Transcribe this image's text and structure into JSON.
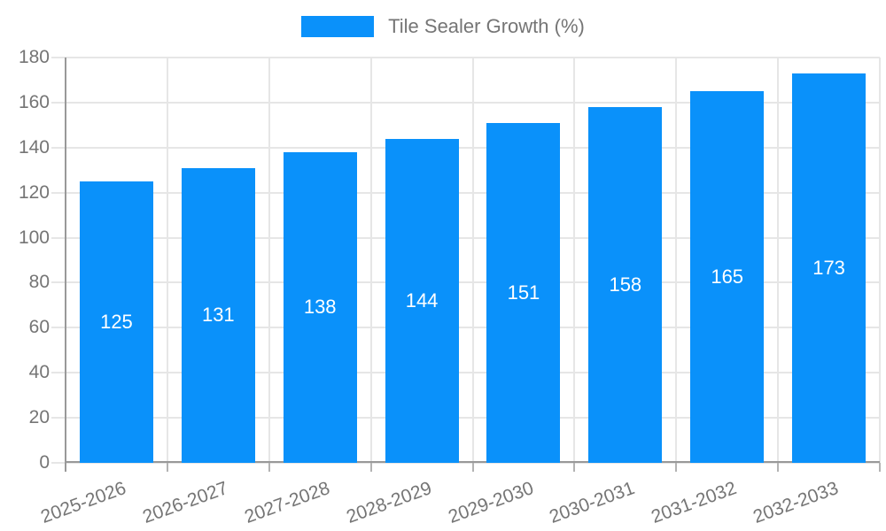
{
  "legend": {
    "label": "Tile Sealer Growth (%)"
  },
  "chart_data": {
    "type": "bar",
    "title": "Tile Sealer Growth (%)",
    "categories": [
      "2025-2026",
      "2026-2027",
      "2027-2028",
      "2028-2029",
      "2029-2030",
      "2030-2031",
      "2031-2032",
      "2032-2033"
    ],
    "series": [
      {
        "name": "Tile Sealer Growth (%)",
        "values": [
          125,
          131,
          138,
          144,
          151,
          158,
          165,
          173
        ]
      }
    ],
    "xlabel": "",
    "ylabel": "",
    "ylim": [
      0,
      180
    ],
    "ytick_step": 20,
    "yticks": [
      0,
      20,
      40,
      60,
      80,
      100,
      120,
      140,
      160,
      180
    ],
    "grid": true,
    "legend_position": "top",
    "bar_value_labels_shown": true,
    "colors": {
      "bar": "#0a91fa",
      "bar_label": "#ffffff",
      "axis_text": "#757575",
      "gridline": "#e6e6e6",
      "axis_line": "#999999",
      "background": "#ffffff"
    }
  }
}
